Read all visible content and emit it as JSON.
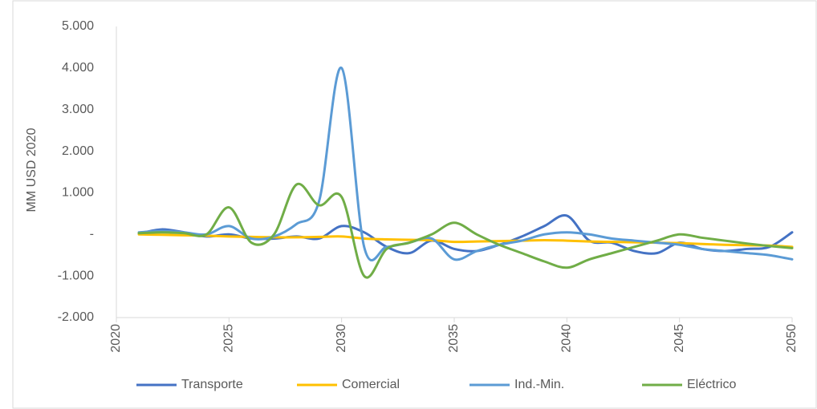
{
  "chart_data": {
    "type": "line",
    "y_label": "MM USD 2020",
    "x": [
      2021,
      2022,
      2023,
      2024,
      2025,
      2026,
      2027,
      2028,
      2029,
      2030,
      2031,
      2032,
      2033,
      2034,
      2035,
      2036,
      2037,
      2038,
      2039,
      2040,
      2041,
      2042,
      2043,
      2044,
      2045,
      2046,
      2047,
      2048,
      2049,
      2050
    ],
    "series": [
      {
        "name": "Transporte",
        "color": "#4472c4",
        "values": [
          20,
          120,
          50,
          -50,
          0,
          -100,
          -100,
          -50,
          -100,
          200,
          50,
          -300,
          -450,
          -150,
          -350,
          -400,
          -250,
          -50,
          200,
          450,
          -150,
          -200,
          -400,
          -450,
          -200,
          -350,
          -400,
          -350,
          -300,
          50
        ]
      },
      {
        "name": "Comercial",
        "color": "#ffc000",
        "values": [
          0,
          -10,
          -20,
          -30,
          -50,
          -60,
          -70,
          -70,
          -60,
          -50,
          -100,
          -120,
          -130,
          -140,
          -180,
          -170,
          -160,
          -150,
          -140,
          -150,
          -170,
          -180,
          -190,
          -200,
          -210,
          -230,
          -250,
          -260,
          -270,
          -300
        ]
      },
      {
        "name": "Ind.-Min.",
        "color": "#5b9bd5",
        "values": [
          50,
          80,
          50,
          0,
          200,
          -100,
          -50,
          250,
          800,
          4000,
          -300,
          -300,
          -200,
          -100,
          -600,
          -400,
          -250,
          -150,
          0,
          50,
          0,
          -100,
          -150,
          -200,
          -250,
          -350,
          -400,
          -450,
          -500,
          -600
        ]
      },
      {
        "name": "Eléctrico",
        "color": "#70ad47",
        "values": [
          30,
          50,
          30,
          0,
          650,
          -200,
          0,
          1200,
          700,
          900,
          -1000,
          -350,
          -200,
          0,
          280,
          0,
          -250,
          -450,
          -650,
          -800,
          -600,
          -450,
          -300,
          -150,
          0,
          -80,
          -150,
          -220,
          -280,
          -330
        ]
      }
    ],
    "xlim": [
      2020,
      2050
    ],
    "xticks": [
      2020,
      2025,
      2030,
      2035,
      2040,
      2045,
      2050
    ],
    "ylim": [
      -2000,
      5000
    ],
    "yticks": [
      {
        "value": -2000,
        "label": "-2.000"
      },
      {
        "value": -1000,
        "label": "-1.000"
      },
      {
        "value": 0,
        "label": "-"
      },
      {
        "value": 1000,
        "label": "1.000"
      },
      {
        "value": 2000,
        "label": "2.000"
      },
      {
        "value": 3000,
        "label": "3.000"
      },
      {
        "value": 4000,
        "label": "4.000"
      },
      {
        "value": 5000,
        "label": "5.000"
      }
    ],
    "grid": false,
    "smooth": true,
    "legend": "bottom"
  }
}
